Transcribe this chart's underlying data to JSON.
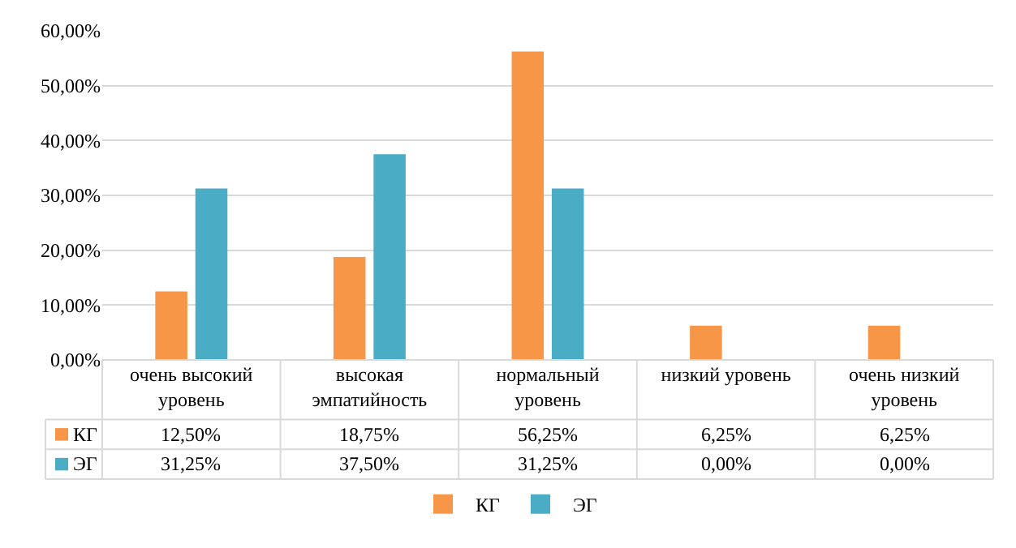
{
  "chart_data": {
    "type": "bar",
    "categories": [
      "очень высокий уровень",
      "высокая эмпатийность",
      "нормальный уровень",
      "низкий уровень",
      "очень низкий уровень"
    ],
    "series": [
      {
        "name": "КГ",
        "color": "#f79646",
        "values": [
          12.5,
          18.75,
          56.25,
          6.25,
          6.25
        ],
        "value_labels": [
          "12,50%",
          "18,75%",
          "56,25%",
          "6,25%",
          "6,25%"
        ]
      },
      {
        "name": "ЭГ",
        "color": "#4bacc6",
        "values": [
          31.25,
          37.5,
          31.25,
          0,
          0
        ],
        "value_labels": [
          "31,25%",
          "37,50%",
          "31,25%",
          "0,00%",
          "0,00%"
        ]
      }
    ],
    "ylim": [
      0,
      60
    ],
    "yticks": [
      {
        "value": 0,
        "label": "0,00%"
      },
      {
        "value": 10,
        "label": "10,00%"
      },
      {
        "value": 20,
        "label": "20,00%"
      },
      {
        "value": 30,
        "label": "30,00%"
      },
      {
        "value": 40,
        "label": "40,00%"
      },
      {
        "value": 50,
        "label": "50,00%"
      },
      {
        "value": 60,
        "label": "60,00%"
      }
    ],
    "grid": "y",
    "legend": "bottom"
  }
}
